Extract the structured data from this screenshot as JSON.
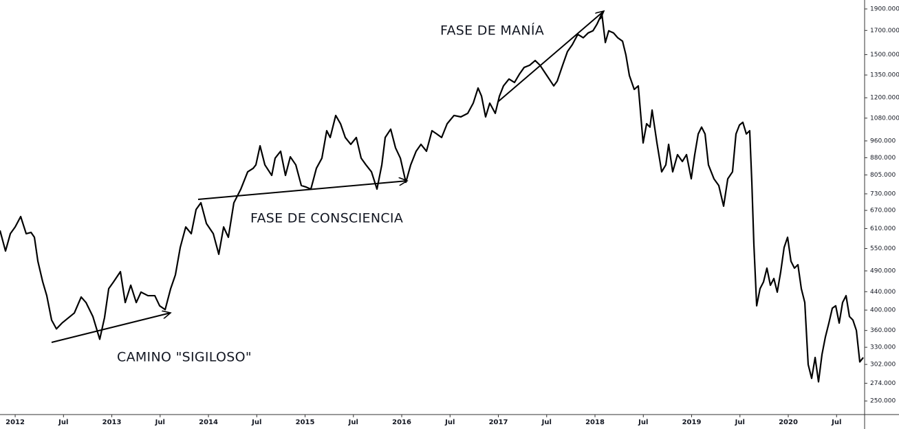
{
  "chart_data": {
    "type": "line",
    "color": "#000000",
    "log_scale": true,
    "annotations": [
      "FASE DE MANÍA",
      "FASE DE CONSCIENCIA",
      "CAMINO \"SIGILOSO\""
    ],
    "xlim": [
      2011.843,
      2020.79
    ],
    "ylim": [
      233,
      1990
    ],
    "xticks": [
      2012,
      {
        "value": 2012.5,
        "label": "Jul"
      },
      2013,
      {
        "value": 2013.5,
        "label": "Jul"
      },
      2014,
      {
        "value": 2014.5,
        "label": "Jul"
      },
      2015,
      {
        "value": 2015.5,
        "label": "Jul"
      },
      2016,
      {
        "value": 2016.5,
        "label": "Jul"
      },
      2017,
      {
        "value": 2017.5,
        "label": "Jul"
      },
      2018,
      {
        "value": 2018.5,
        "label": "Jul"
      },
      2019,
      {
        "value": 2019.5,
        "label": "Jul"
      },
      2020,
      {
        "value": 2020.5,
        "label": "Jul"
      }
    ],
    "yticks": [
      {
        "value": 1900,
        "label": "1900.000"
      },
      {
        "value": 1700,
        "label": "1700.000"
      },
      {
        "value": 1500,
        "label": "1500.000"
      },
      {
        "value": 1350,
        "label": "1350.000"
      },
      {
        "value": 1200,
        "label": "1200.000"
      },
      {
        "value": 1080,
        "label": "1080.000"
      },
      {
        "value": 960,
        "label": "960.000"
      },
      {
        "value": 880,
        "label": "880.000"
      },
      {
        "value": 805,
        "label": "805.000"
      },
      {
        "value": 730,
        "label": "730.000"
      },
      {
        "value": 670,
        "label": "670.000"
      },
      {
        "value": 610,
        "label": "610.000"
      },
      {
        "value": 550,
        "label": "550.000"
      },
      {
        "value": 490,
        "label": "490.000"
      },
      {
        "value": 440,
        "label": "440.000"
      },
      {
        "value": 400,
        "label": "400.000"
      },
      {
        "value": 360,
        "label": "360.000"
      },
      {
        "value": 330,
        "label": "330.000"
      },
      {
        "value": 302,
        "label": "302.000"
      },
      {
        "value": 274,
        "label": "274.000"
      },
      {
        "value": 250,
        "label": "250.000"
      }
    ],
    "x": [
      2011.843,
      2011.9,
      2011.95,
      2012.0,
      2012.057,
      2012.114,
      2012.164,
      2012.199,
      2012.235,
      2012.285,
      2012.327,
      2012.377,
      2012.427,
      2012.484,
      2012.555,
      2012.612,
      2012.683,
      2012.733,
      2012.804,
      2012.875,
      2012.925,
      2012.968,
      2013.018,
      2013.089,
      2013.139,
      2013.196,
      2013.253,
      2013.302,
      2013.374,
      2013.445,
      2013.495,
      2013.552,
      2013.609,
      2013.658,
      2013.708,
      2013.765,
      2013.822,
      2013.872,
      2013.922,
      2013.979,
      2014.05,
      2014.107,
      2014.157,
      2014.206,
      2014.263,
      2014.335,
      2014.406,
      2014.463,
      2014.491,
      2014.534,
      2014.584,
      2014.655,
      2014.69,
      2014.747,
      2014.797,
      2014.847,
      2014.904,
      2014.961,
      2015.011,
      2015.06,
      2015.117,
      2015.174,
      2015.224,
      2015.26,
      2015.317,
      2015.367,
      2015.416,
      2015.473,
      2015.53,
      2015.58,
      2015.63,
      2015.687,
      2015.744,
      2015.794,
      2015.829,
      2015.886,
      2015.936,
      2015.986,
      2016.043,
      2016.093,
      2016.149,
      2016.199,
      2016.256,
      2016.313,
      2016.363,
      2016.413,
      2016.47,
      2016.541,
      2016.612,
      2016.683,
      2016.74,
      2016.79,
      2016.826,
      2016.868,
      2016.911,
      2016.968,
      2017.011,
      2017.053,
      2017.11,
      2017.167,
      2017.217,
      2017.267,
      2017.324,
      2017.381,
      2017.431,
      2017.502,
      2017.573,
      2017.609,
      2017.665,
      2017.715,
      2017.765,
      2017.822,
      2017.879,
      2017.929,
      2017.979,
      2018.021,
      2018.071,
      2018.107,
      2018.142,
      2018.192,
      2018.235,
      2018.285,
      2018.32,
      2018.356,
      2018.406,
      2018.448,
      2018.498,
      2018.534,
      2018.569,
      2018.591,
      2018.641,
      2018.69,
      2018.733,
      2018.762,
      2018.804,
      2018.854,
      2018.904,
      2018.947,
      2018.996,
      2019.032,
      2019.068,
      2019.103,
      2019.139,
      2019.174,
      2019.231,
      2019.281,
      2019.331,
      2019.374,
      2019.423,
      2019.459,
      2019.495,
      2019.53,
      2019.566,
      2019.601,
      2019.623,
      2019.644,
      2019.673,
      2019.708,
      2019.744,
      2019.779,
      2019.815,
      2019.851,
      2019.886,
      2019.922,
      2019.957,
      2019.993,
      2020.028,
      2020.064,
      2020.1,
      2020.135,
      2020.171,
      2020.206,
      2020.242,
      2020.278,
      2020.313,
      2020.349,
      2020.384,
      2020.42,
      2020.456,
      2020.491,
      2020.527,
      2020.562,
      2020.598,
      2020.633,
      2020.669,
      2020.705,
      2020.74,
      2020.776
    ],
    "values": [
      604,
      543,
      594,
      615,
      649,
      594,
      598,
      583,
      515,
      463,
      431,
      380,
      363,
      374,
      385,
      394,
      428,
      416,
      387,
      344,
      385,
      447,
      463,
      488,
      416,
      455,
      416,
      439,
      431,
      431,
      409,
      401,
      447,
      480,
      553,
      615,
      594,
      673,
      697,
      626,
      594,
      534,
      615,
      583,
      697,
      748,
      818,
      833,
      848,
      936,
      848,
      803,
      878,
      910,
      803,
      884,
      848,
      762,
      756,
      748,
      833,
      878,
      1012,
      977,
      1095,
      1049,
      977,
      943,
      977,
      878,
      848,
      818,
      748,
      848,
      977,
      1020,
      926,
      878,
      775,
      848,
      910,
      943,
      910,
      1012,
      995,
      977,
      1049,
      1095,
      1087,
      1107,
      1167,
      1262,
      1210,
      1087,
      1167,
      1107,
      1210,
      1276,
      1322,
      1299,
      1355,
      1404,
      1420,
      1455,
      1420,
      1346,
      1276,
      1308,
      1420,
      1524,
      1579,
      1666,
      1637,
      1678,
      1697,
      1757,
      1854,
      1597,
      1697,
      1678,
      1637,
      1608,
      1497,
      1346,
      1253,
      1276,
      950,
      1049,
      1031,
      1126,
      950,
      818,
      848,
      943,
      818,
      894,
      863,
      894,
      789,
      894,
      995,
      1031,
      995,
      848,
      789,
      762,
      685,
      789,
      818,
      995,
      1042,
      1057,
      995,
      1012,
      775,
      563,
      409,
      447,
      463,
      497,
      455,
      471,
      439,
      488,
      553,
      583,
      515,
      497,
      506,
      447,
      416,
      302,
      281,
      313,
      276,
      318,
      348,
      374,
      404,
      409,
      374,
      416,
      431,
      387,
      380,
      360,
      306,
      313
    ]
  }
}
